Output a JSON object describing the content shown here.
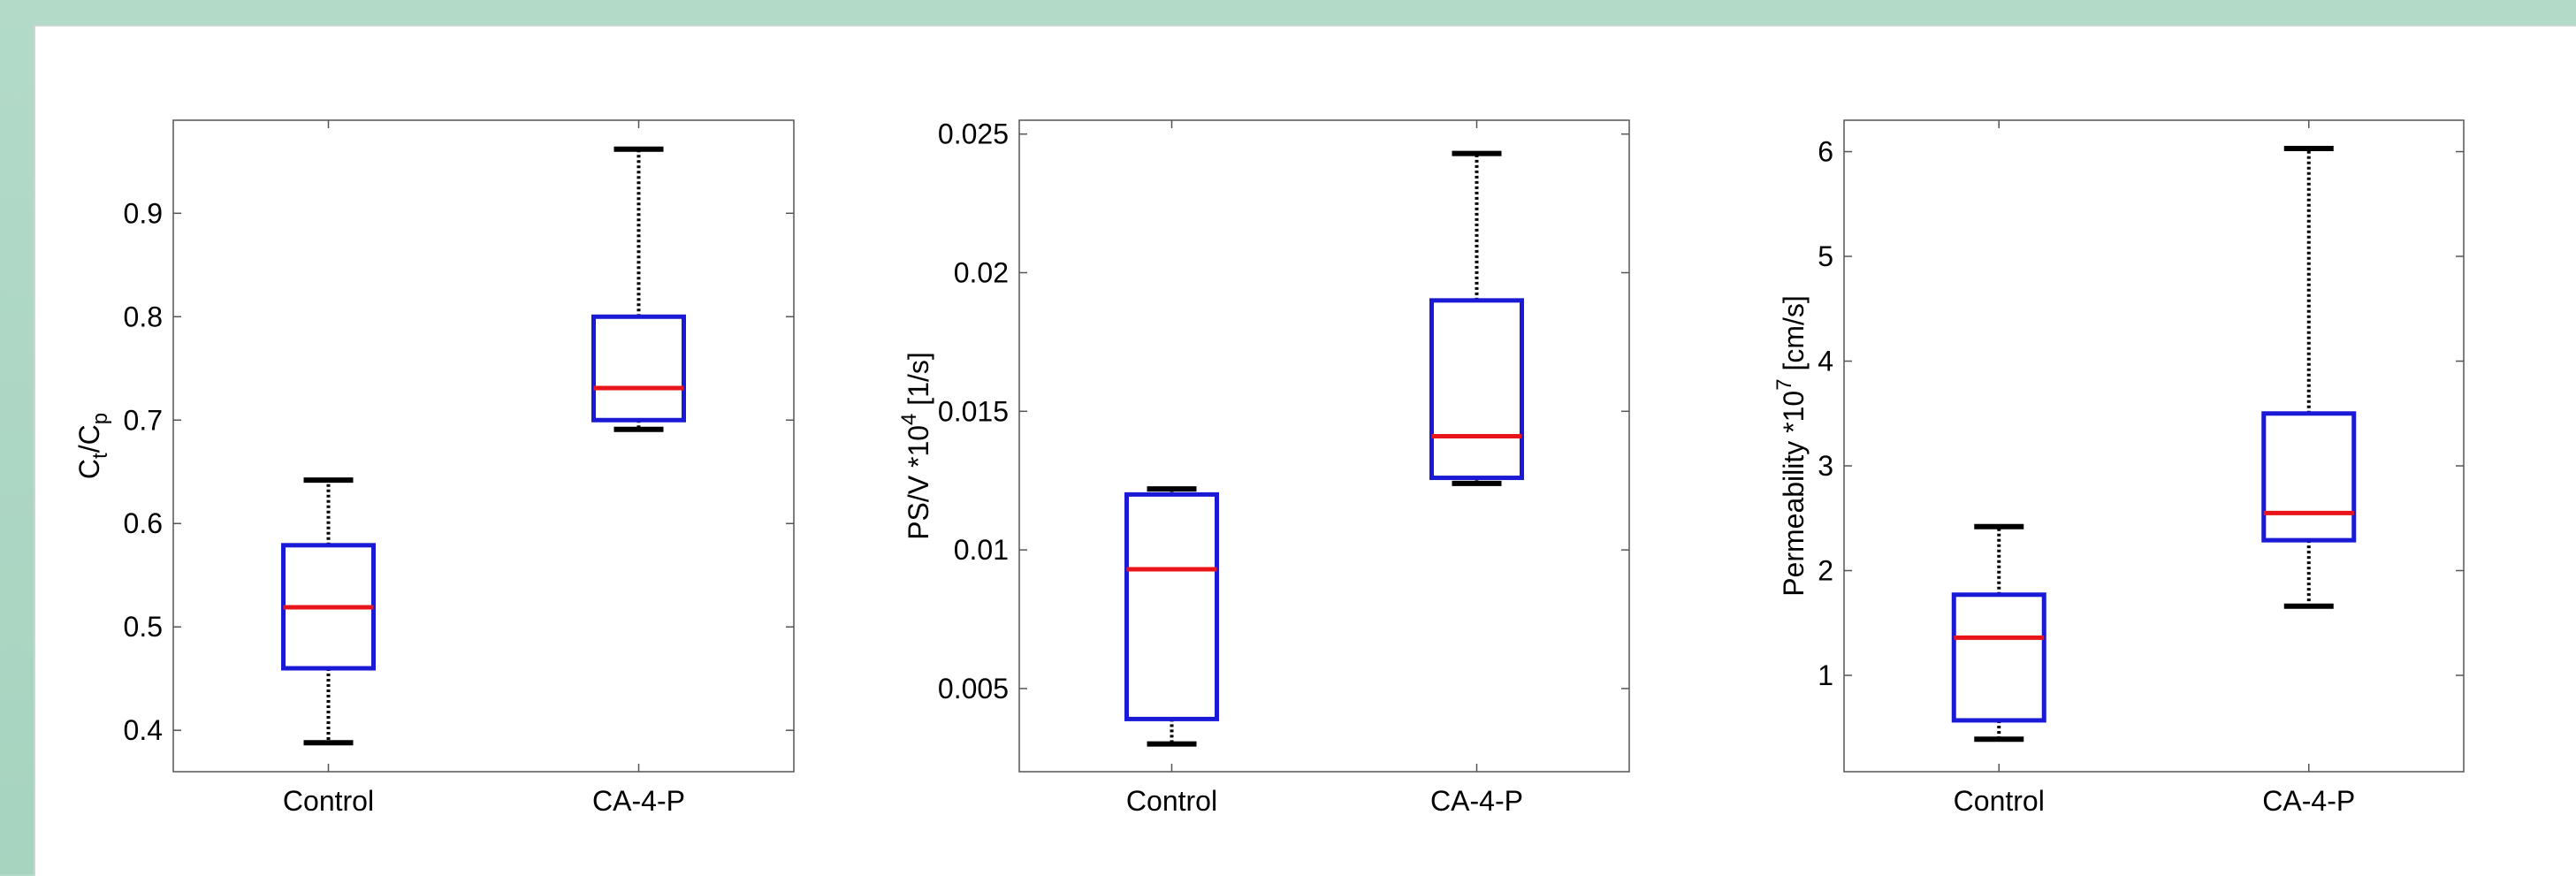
{
  "chart_data": [
    {
      "type": "box",
      "ylabel": {
        "base": "C",
        "sub1": "t",
        "sep": "/C",
        "sub2": "p"
      },
      "ylim": [
        0.36,
        0.99
      ],
      "yticks": [
        0.4,
        0.5,
        0.6,
        0.7,
        0.8,
        0.9
      ],
      "ytick_labels": [
        "0.4",
        "0.5",
        "0.6",
        "0.7",
        "0.8",
        "0.9"
      ],
      "categories": [
        "Control",
        "CA-4-P"
      ],
      "boxes": [
        {
          "category": "Control",
          "min": 0.388,
          "q1": 0.46,
          "median": 0.519,
          "q3": 0.579,
          "max": 0.642
        },
        {
          "category": "CA-4-P",
          "min": 0.691,
          "q1": 0.7,
          "median": 0.731,
          "q3": 0.8,
          "max": 0.962
        }
      ]
    },
    {
      "type": "box",
      "ylabel": {
        "base": "PS/V *10",
        "sup": "4",
        "rest": " [1/s]"
      },
      "ylim": [
        0.002,
        0.0255
      ],
      "yticks": [
        0.005,
        0.01,
        0.015,
        0.02,
        0.025
      ],
      "ytick_labels": [
        "0.005",
        "0.01",
        "0.015",
        "0.02",
        "0.025"
      ],
      "categories": [
        "Control",
        "CA-4-P"
      ],
      "boxes": [
        {
          "category": "Control",
          "min": 0.003,
          "q1": 0.0039,
          "median": 0.0093,
          "q3": 0.012,
          "max": 0.0122
        },
        {
          "category": "CA-4-P",
          "min": 0.0124,
          "q1": 0.0126,
          "median": 0.0141,
          "q3": 0.019,
          "max": 0.0243
        }
      ]
    },
    {
      "type": "box",
      "ylabel": {
        "base": "Permeability *10",
        "sup": "7",
        "rest": " [cm/s]"
      },
      "ylim": [
        0.08,
        6.3
      ],
      "yticks": [
        1,
        2,
        3,
        4,
        5,
        6
      ],
      "ytick_labels": [
        "1",
        "2",
        "3",
        "4",
        "5",
        "6"
      ],
      "categories": [
        "Control",
        "CA-4-P"
      ],
      "boxes": [
        {
          "category": "Control",
          "min": 0.39,
          "q1": 0.57,
          "median": 1.36,
          "q3": 1.77,
          "max": 2.42
        },
        {
          "category": "CA-4-P",
          "min": 1.66,
          "q1": 2.29,
          "median": 2.55,
          "q3": 3.5,
          "max": 6.03
        }
      ]
    }
  ],
  "colors": {
    "box": "#1a1ad6",
    "median": "#e8141a",
    "whisker": "#000000",
    "axis": "#555555"
  }
}
